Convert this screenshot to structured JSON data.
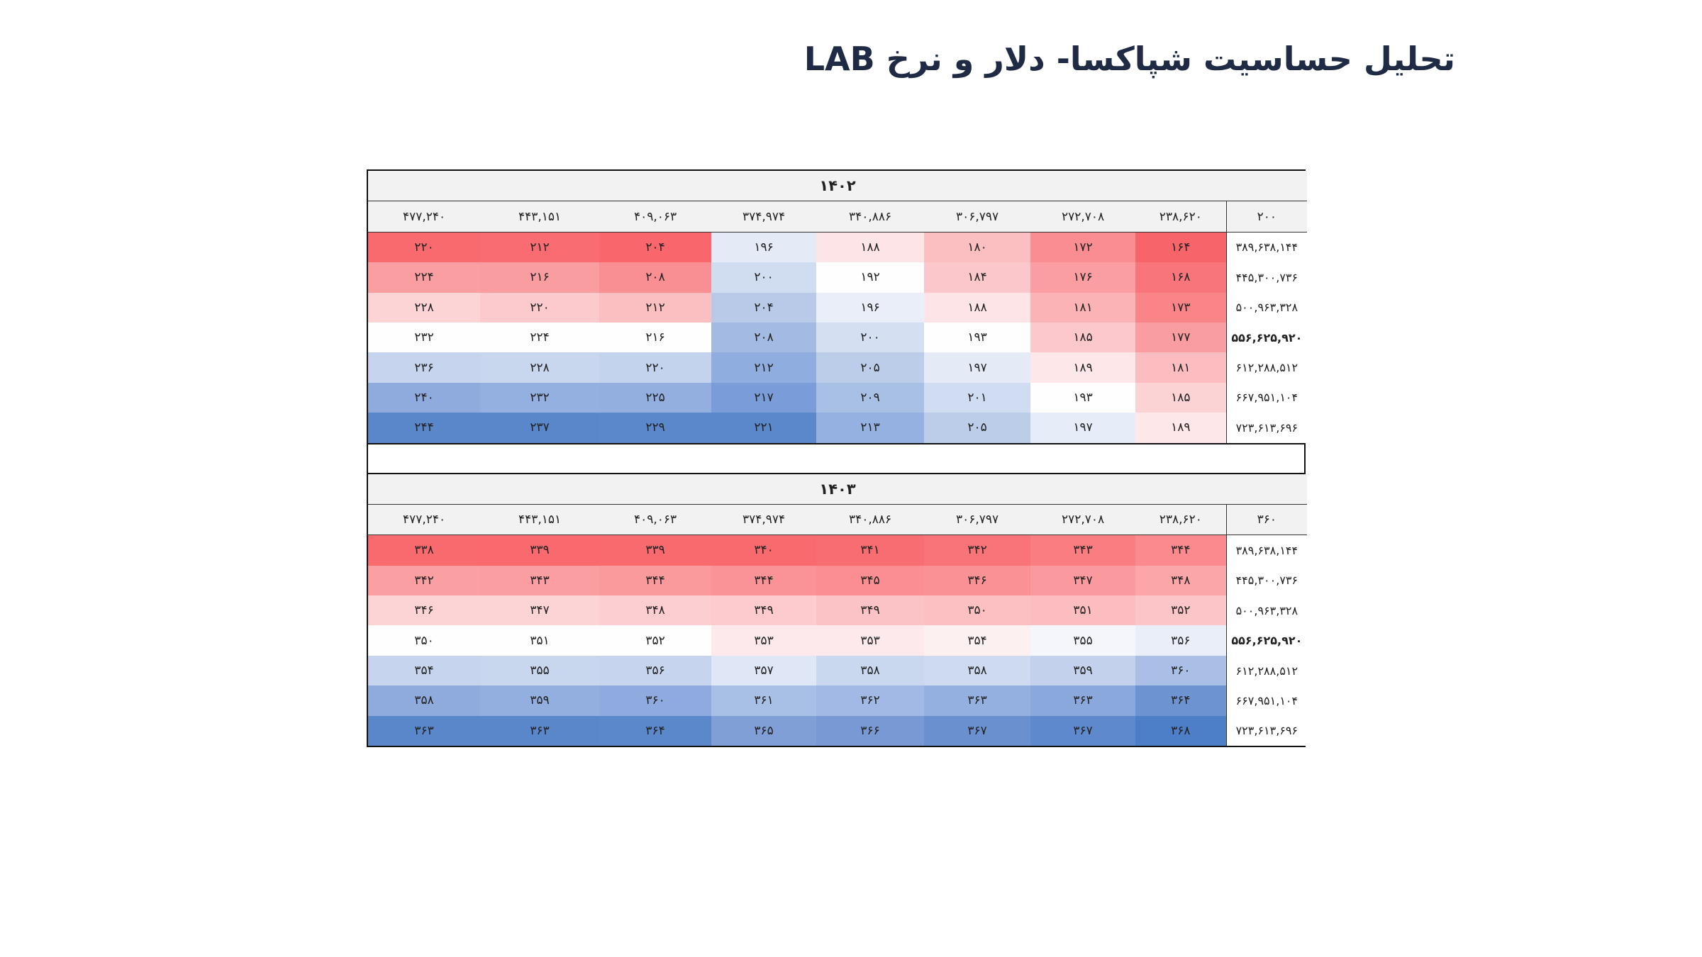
{
  "title": "تحلیل حساسیت شپاکسا- دلار و نرخ LAB",
  "tables": [
    {
      "year": "۱۴۰۲",
      "corner": "۲۰۰",
      "columns": [
        "۲۳۸,۶۲۰",
        "۲۷۲,۷۰۸",
        "۳۰۶,۷۹۷",
        "۳۴۰,۸۸۶",
        "۳۷۴,۹۷۴",
        "۴۰۹,۰۶۳",
        "۴۴۳,۱۵۱",
        "۴۷۷,۲۴۰"
      ],
      "bold_column_index": 3,
      "rows": [
        {
          "label": "۳۸۹,۶۳۸,۱۴۴",
          "values": [
            "۱۶۴",
            "۱۷۲",
            "۱۸۰",
            "۱۸۸",
            "۱۹۶",
            "۲۰۴",
            "۲۱۲",
            "۲۲۰"
          ]
        },
        {
          "label": "۴۴۵,۳۰۰,۷۳۶",
          "values": [
            "۱۶۸",
            "۱۷۶",
            "۱۸۴",
            "۱۹۲",
            "۲۰۰",
            "۲۰۸",
            "۲۱۶",
            "۲۲۴"
          ]
        },
        {
          "label": "۵۰۰,۹۶۳,۳۲۸",
          "values": [
            "۱۷۳",
            "۱۸۱",
            "۱۸۸",
            "۱۹۶",
            "۲۰۴",
            "۲۱۲",
            "۲۲۰",
            "۲۲۸"
          ]
        },
        {
          "label": "۵۵۶,۶۲۵,۹۲۰",
          "values": [
            "۱۷۷",
            "۱۸۵",
            "۱۹۳",
            "۲۰۰",
            "۲۰۸",
            "۲۱۶",
            "۲۲۴",
            "۲۳۲"
          ],
          "bold": true
        },
        {
          "label": "۶۱۲,۲۸۸,۵۱۲",
          "values": [
            "۱۸۱",
            "۱۸۹",
            "۱۹۷",
            "۲۰۵",
            "۲۱۲",
            "۲۲۰",
            "۲۲۸",
            "۲۳۶"
          ]
        },
        {
          "label": "۶۶۷,۹۵۱,۱۰۴",
          "values": [
            "۱۸۵",
            "۱۹۳",
            "۲۰۱",
            "۲۰۹",
            "۲۱۷",
            "۲۲۵",
            "۲۳۲",
            "۲۴۰"
          ]
        },
        {
          "label": "۷۲۳,۶۱۳,۶۹۶",
          "values": [
            "۱۸۹",
            "۱۹۷",
            "۲۰۵",
            "۲۱۳",
            "۲۲۱",
            "۲۲۹",
            "۲۳۷",
            "۲۴۴"
          ]
        }
      ],
      "cell_colors": [
        [
          "#f7646a",
          "#f98d91",
          "#fbbec1",
          "#fde5e7",
          "#e4ebf7",
          "#f9676c",
          "#f96d72",
          "#f96a6f"
        ],
        [
          "#f8767b",
          "#fa9ea2",
          "#fbc7ca",
          "#fefefe",
          "#d0dcf0",
          "#fa8f93",
          "#fa9da0",
          "#fa9ea1"
        ],
        [
          "#f98589",
          "#fbb3b6",
          "#fde5e7",
          "#e9eef9",
          "#b8cae8",
          "#fbbfc2",
          "#fccacd",
          "#fcd4d6"
        ],
        [
          "#fa9da0",
          "#fcc8cb",
          "#fefefe",
          "#d4dff1",
          "#a3bbe2",
          "#fefefe",
          "#fefefe",
          "#fefefe"
        ],
        [
          "#fbbdc0",
          "#fde7e8",
          "#e4ebf7",
          "#bccdea",
          "#90ade0",
          "#c4d3ed",
          "#c8d6ee",
          "#c6d4ed"
        ],
        [
          "#fcd3d5",
          "#fefefe",
          "#d0dcf1",
          "#a9c0e5",
          "#7a9cd8",
          "#93afe0",
          "#94b0e1",
          "#8faadd"
        ],
        [
          "#fde7e8",
          "#e6ecf8",
          "#bccdea",
          "#95b1e1",
          "#5b87cb",
          "#5b87cb",
          "#5a86ca",
          "#5a86ca"
        ]
      ]
    },
    {
      "year": "۱۴۰۳",
      "corner": "۳۶۰",
      "columns": [
        "۲۳۸,۶۲۰",
        "۲۷۲,۷۰۸",
        "۳۰۶,۷۹۷",
        "۳۴۰,۸۸۶",
        "۳۷۴,۹۷۴",
        "۴۰۹,۰۶۳",
        "۴۴۳,۱۵۱",
        "۴۷۷,۲۴۰"
      ],
      "bold_column_index": 3,
      "rows": [
        {
          "label": "۳۸۹,۶۳۸,۱۴۴",
          "values": [
            "۳۴۴",
            "۳۴۳",
            "۳۴۲",
            "۳۴۱",
            "۳۴۰",
            "۳۳۹",
            "۳۳۹",
            "۳۳۸"
          ]
        },
        {
          "label": "۴۴۵,۳۰۰,۷۳۶",
          "values": [
            "۳۴۸",
            "۳۴۷",
            "۳۴۶",
            "۳۴۵",
            "۳۴۴",
            "۳۴۴",
            "۳۴۳",
            "۳۴۲"
          ]
        },
        {
          "label": "۵۰۰,۹۶۳,۳۲۸",
          "values": [
            "۳۵۲",
            "۳۵۱",
            "۳۵۰",
            "۳۴۹",
            "۳۴۹",
            "۳۴۸",
            "۳۴۷",
            "۳۴۶"
          ]
        },
        {
          "label": "۵۵۶,۶۲۵,۹۲۰",
          "values": [
            "۳۵۶",
            "۳۵۵",
            "۳۵۴",
            "۳۵۳",
            "۳۵۳",
            "۳۵۲",
            "۳۵۱",
            "۳۵۰"
          ],
          "bold": true
        },
        {
          "label": "۶۱۲,۲۸۸,۵۱۲",
          "values": [
            "۳۶۰",
            "۳۵۹",
            "۳۵۸",
            "۳۵۸",
            "۳۵۷",
            "۳۵۶",
            "۳۵۵",
            "۳۵۴"
          ]
        },
        {
          "label": "۶۶۷,۹۵۱,۱۰۴",
          "values": [
            "۳۶۴",
            "۳۶۳",
            "۳۶۳",
            "۳۶۲",
            "۳۶۱",
            "۳۶۰",
            "۳۵۹",
            "۳۵۸"
          ]
        },
        {
          "label": "۷۲۳,۶۱۳,۶۹۶",
          "values": [
            "۳۶۸",
            "۳۶۷",
            "۳۶۷",
            "۳۶۶",
            "۳۶۵",
            "۳۶۴",
            "۳۶۳",
            "۳۶۳"
          ]
        }
      ],
      "cell_colors": [
        [
          "#fa8a8e",
          "#f97d81",
          "#f87479",
          "#f86d72",
          "#f96a6f",
          "#f96a6f",
          "#f9696e",
          "#f96a6f"
        ],
        [
          "#fba6a9",
          "#fa9a9e",
          "#fa9195",
          "#fa8e92",
          "#fa9397",
          "#fa9a9d",
          "#fa9ea1",
          "#fa9fa2"
        ],
        [
          "#fcc5c8",
          "#fcbdc0",
          "#fcc0c3",
          "#fcc3c6",
          "#fdcbcd",
          "#fcced1",
          "#fdd4d6",
          "#fcd4d6"
        ],
        [
          "#e9eef9",
          "#f5f6fc",
          "#fdf0f1",
          "#fde9eb",
          "#fde9eb",
          "#fefefe",
          "#fefefe",
          "#fefefe"
        ],
        [
          "#a9bfe5",
          "#c3d1ec",
          "#cedaf0",
          "#cad8ef",
          "#dfe7f6",
          "#c6d4ed",
          "#c8d6ee",
          "#c6d4ed"
        ],
        [
          "#6e93d1",
          "#8ba8dc",
          "#94b0e1",
          "#a1b9e4",
          "#a9c0e6",
          "#8faade",
          "#93afe0",
          "#8faadd"
        ],
        [
          "#4d7fc8",
          "#5e89cc",
          "#6a90cf",
          "#7899d4",
          "#7f9fd6",
          "#5b87cb",
          "#5a86ca",
          "#5a86ca"
        ]
      ]
    }
  ]
}
